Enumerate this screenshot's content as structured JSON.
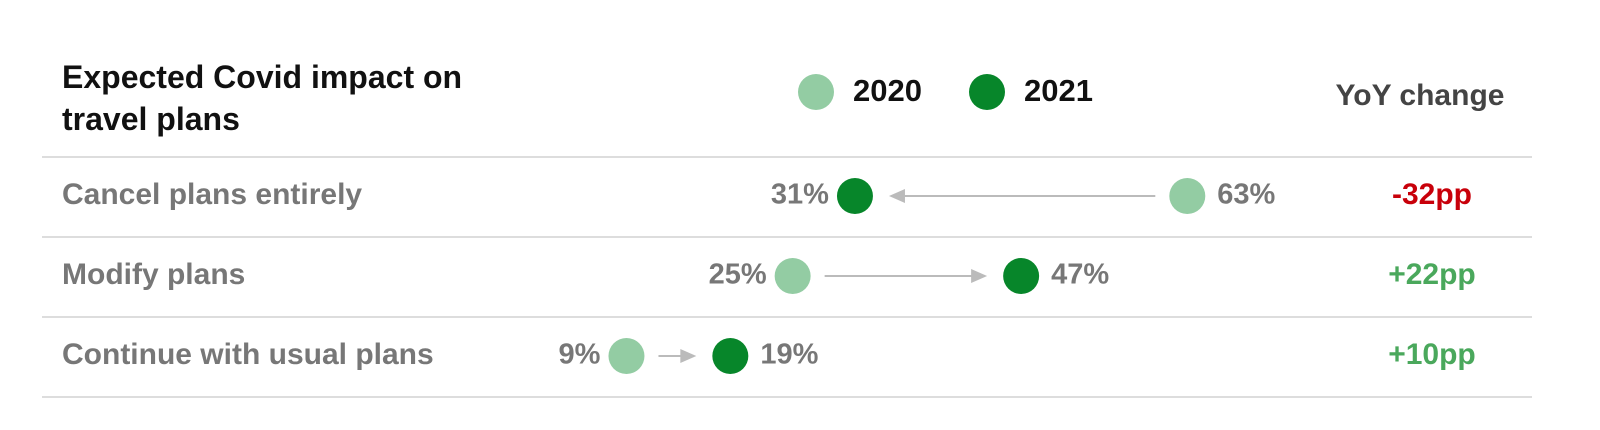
{
  "chart_data": {
    "type": "dumbbell",
    "title": "Expected Covid impact on travel plans",
    "categories": [
      "Cancel plans entirely",
      "Modify plans",
      "Continue with usual plans"
    ],
    "series": [
      {
        "name": "2020",
        "color": "#93cca3",
        "values": [
          63,
          25,
          9
        ],
        "value_labels": [
          "63%",
          "25%",
          "9%"
        ]
      },
      {
        "name": "2021",
        "color": "#07862a",
        "values": [
          31,
          47,
          19
        ],
        "value_labels": [
          "31%",
          "47%",
          "19%"
        ]
      }
    ],
    "xlim": [
      0,
      70
    ],
    "change": {
      "title": "YoY change",
      "values": [
        -32,
        22,
        10
      ],
      "value_labels": [
        "-32pp",
        "+22pp",
        "+10pp"
      ],
      "negative_color": "#c8000a",
      "positive_color": "#4aa85c"
    }
  }
}
